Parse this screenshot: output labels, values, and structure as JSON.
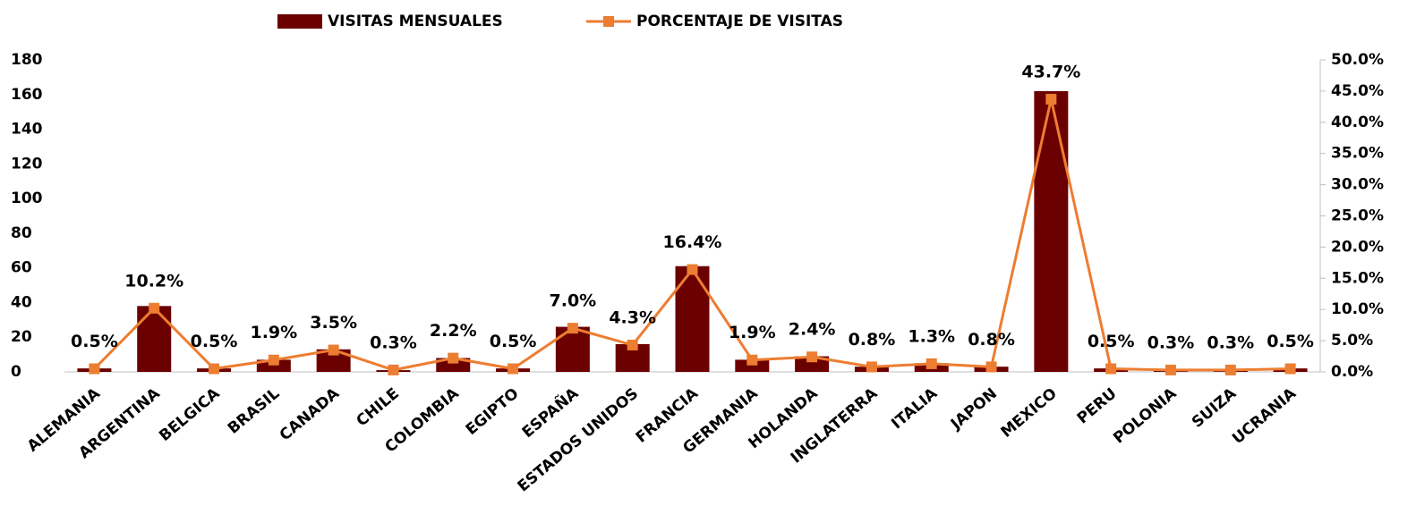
{
  "chart_data": {
    "type": "combo",
    "categories": [
      "ALEMANIA",
      "ARGENTINA",
      "BELGICA",
      "BRASIL",
      "CANADA",
      "CHILE",
      "COLOMBIA",
      "EGIPTO",
      "ESPAÑA",
      "ESTADOS UNIDOS",
      "FRANCIA",
      "GERMANIA",
      "HOLANDA",
      "INGLATERRA",
      "ITALIA",
      "JAPON",
      "MEXICO",
      "PERU",
      "POLONIA",
      "SUIZA",
      "UCRANIA"
    ],
    "series": [
      {
        "name": "VISITAS MENSUALES",
        "type": "bar",
        "color": "#6b0000",
        "values": [
          2,
          38,
          2,
          7,
          13,
          1,
          8,
          2,
          26,
          16,
          61,
          7,
          9,
          3,
          5,
          3,
          162,
          2,
          1,
          1,
          2
        ]
      },
      {
        "name": "PORCENTAJE DE VISITAS",
        "type": "line",
        "axis": "y2",
        "color": "#ed7d31",
        "values": [
          0.5,
          10.2,
          0.5,
          1.9,
          3.5,
          0.3,
          2.2,
          0.5,
          7.0,
          4.3,
          16.4,
          1.9,
          2.4,
          0.8,
          1.3,
          0.8,
          43.7,
          0.5,
          0.3,
          0.3,
          0.5
        ],
        "value_labels": [
          "0.5%",
          "10.2%",
          "0.5%",
          "1.9%",
          "3.5%",
          "0.3%",
          "2.2%",
          "0.5%",
          "7.0%",
          "4.3%",
          "16.4%",
          "1.9%",
          "2.4%",
          "0.8%",
          "1.3%",
          "0.8%",
          "43.7%",
          "0.5%",
          "0.3%",
          "0.3%",
          "0.5%"
        ]
      }
    ],
    "ylim": [
      0,
      180
    ],
    "yticks": [
      0,
      20,
      40,
      60,
      80,
      100,
      120,
      140,
      160,
      180
    ],
    "y2lim": [
      0,
      50
    ],
    "y2ticks": [
      {
        "value": 0,
        "label": "0.0%"
      },
      {
        "value": 5,
        "label": "5.0%"
      },
      {
        "value": 10,
        "label": "10.0%"
      },
      {
        "value": 15,
        "label": "15.0%"
      },
      {
        "value": 20,
        "label": "20.0%"
      },
      {
        "value": 25,
        "label": "25.0%"
      },
      {
        "value": 30,
        "label": "30.0%"
      },
      {
        "value": 35,
        "label": "35.0%"
      },
      {
        "value": 40,
        "label": "40.0%"
      },
      {
        "value": 45,
        "label": "45.0%"
      },
      {
        "value": 50,
        "label": "50.0%"
      }
    ],
    "legend": "top",
    "grid": false
  }
}
